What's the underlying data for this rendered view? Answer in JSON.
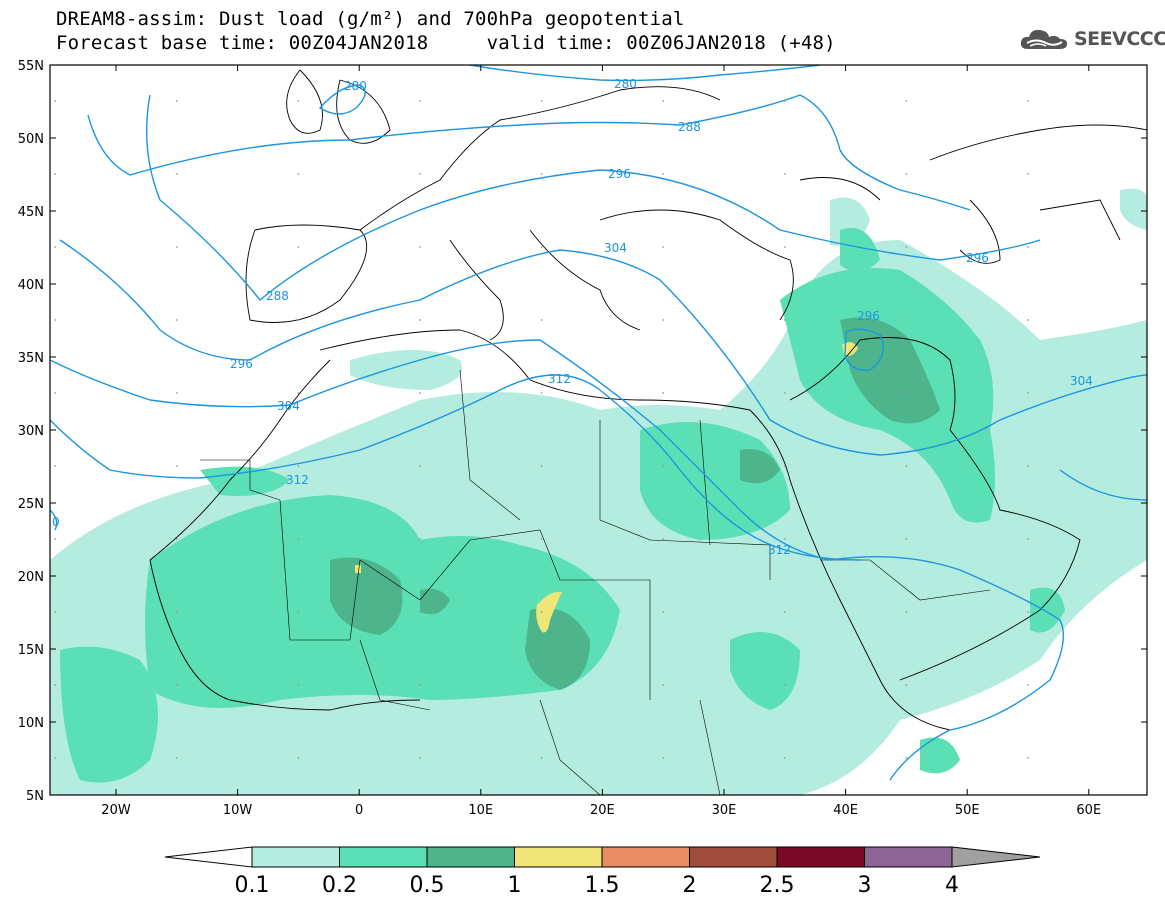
{
  "title_line1": "DREAM8-assim: Dust load (g/m²) and 700hPa geopotential",
  "title_line2": "Forecast base time: 00Z04JAN2018     valid time: 00Z06JAN2018 (+48)",
  "logo": {
    "text": "SEEVCCC",
    "icon": "cloud-icon",
    "color": "#555555"
  },
  "map": {
    "lat_labels": [
      "55N",
      "50N",
      "45N",
      "40N",
      "35N",
      "30N",
      "25N",
      "20N",
      "15N",
      "10N",
      "5N"
    ],
    "lon_labels": [
      "20W",
      "10W",
      "0",
      "10E",
      "20E",
      "30E",
      "40E",
      "50E",
      "60E"
    ],
    "contour_color": "#1d95e0",
    "contour_labels": [
      "280",
      "280",
      "288",
      "288",
      "296",
      "296",
      "296",
      "296",
      "304",
      "304",
      "304",
      "312",
      "312",
      "312",
      "0"
    ]
  },
  "colorbar": {
    "levels": [
      "0.1",
      "0.2",
      "0.5",
      "1",
      "1.5",
      "2",
      "2.5",
      "3",
      "4"
    ],
    "colors": [
      "#b4ece0",
      "#5ae0b4",
      "#4eb48c",
      "#f0e678",
      "#e88c64",
      "#a04c3c",
      "#780a28",
      "#8c6496",
      "#a0a0a0"
    ]
  },
  "dust_colors": {
    "light": "#b4ece0",
    "medium": "#5ae0b4",
    "dark": "#4eb48c",
    "yellow": "#f0e678"
  }
}
